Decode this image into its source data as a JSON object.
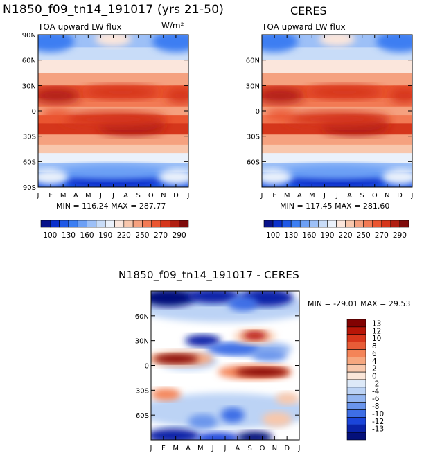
{
  "titles": {
    "left": "N1850_f09_tn14_191017 (yrs 21-50)",
    "right": "CERES",
    "bottom": "N1850_f09_tn14_191017 - CERES"
  },
  "subtitles": {
    "left": "TOA upward LW flux",
    "left_units": "W/m²",
    "right": "TOA upward LW flux"
  },
  "stats": {
    "left": "MIN = 116.24  MAX = 287.77",
    "right": "MIN = 117.45  MAX = 281.60",
    "bottom": "MIN = -29.01  MAX =  29.53"
  },
  "chart_data": [
    {
      "type": "heatmap",
      "name": "model",
      "title": "N1850_f09_tn14_191017 (yrs 21-50)",
      "subtitle": "TOA upward LW flux",
      "units": "W/m²",
      "x_categories": [
        "J",
        "F",
        "M",
        "A",
        "M",
        "J",
        "J",
        "A",
        "S",
        "O",
        "N",
        "D",
        "J"
      ],
      "y_tick_values": [
        90,
        60,
        30,
        0,
        -30,
        -60,
        -90
      ],
      "y_tick_labels": [
        "90N",
        "60N",
        "30N",
        "0",
        "30S",
        "60S",
        "90S"
      ],
      "ylim": [
        -90,
        90
      ],
      "colorbar": {
        "levels": [
          100,
          130,
          160,
          190,
          220,
          250,
          270,
          290
        ],
        "labels": [
          "100",
          "130",
          "160",
          "190",
          "220",
          "250",
          "270",
          "290"
        ],
        "colors": [
          "#08128a",
          "#0b31cc",
          "#1f58e6",
          "#3c7ef2",
          "#6da0f5",
          "#9dc0f7",
          "#c8dcf8",
          "#eaf1fb",
          "#fbe6dc",
          "#f8c7ad",
          "#f5a17f",
          "#f27a54",
          "#ea5530",
          "#d5361b",
          "#b01f12",
          "#7e0a0a"
        ]
      },
      "min": 116.24,
      "max": 287.77
    },
    {
      "type": "heatmap",
      "name": "ceres",
      "title": "CERES",
      "subtitle": "TOA upward LW flux",
      "x_categories": [
        "J",
        "F",
        "M",
        "A",
        "M",
        "J",
        "J",
        "A",
        "S",
        "O",
        "N",
        "D",
        "J"
      ],
      "y_tick_values": [
        60,
        30,
        0,
        -30,
        -60
      ],
      "y_tick_labels": [
        "60N",
        "30N",
        "0",
        "30S",
        "60S"
      ],
      "ylim": [
        -90,
        90
      ],
      "colorbar": {
        "levels": [
          100,
          130,
          160,
          190,
          220,
          250,
          270,
          290
        ],
        "labels": [
          "100",
          "130",
          "160",
          "190",
          "220",
          "250",
          "270",
          "290"
        ]
      },
      "min": 117.45,
      "max": 281.6
    },
    {
      "type": "heatmap",
      "name": "difference",
      "title": "N1850_f09_tn14_191017 - CERES",
      "x_categories": [
        "J",
        "F",
        "M",
        "A",
        "M",
        "J",
        "J",
        "A",
        "S",
        "O",
        "N",
        "D",
        "J"
      ],
      "y_tick_values": [
        60,
        30,
        0,
        -30,
        -60
      ],
      "y_tick_labels": [
        "60N",
        "30N",
        "0",
        "30S",
        "60S"
      ],
      "ylim": [
        -90,
        90
      ],
      "colorbar": {
        "levels": [
          13,
          12,
          10,
          8,
          6,
          4,
          2,
          0,
          -2,
          -4,
          -6,
          -8,
          -10,
          -12,
          -13
        ],
        "labels": [
          "13",
          "12",
          "10",
          "8",
          "6",
          "4",
          "2",
          "0",
          "-2",
          "-4",
          "-6",
          "-8",
          "-10",
          "-12",
          "-13"
        ],
        "colors": [
          "#820202",
          "#b81507",
          "#d8361b",
          "#e85c37",
          "#f48458",
          "#f6a77f",
          "#f8c8ac",
          "#fbe6d8",
          "#dde9f8",
          "#bcd3f5",
          "#94b6f1",
          "#6a95ec",
          "#3e6ee6",
          "#1b45da",
          "#0a23a8",
          "#04107a"
        ]
      },
      "min": -29.01,
      "max": 29.53
    }
  ]
}
